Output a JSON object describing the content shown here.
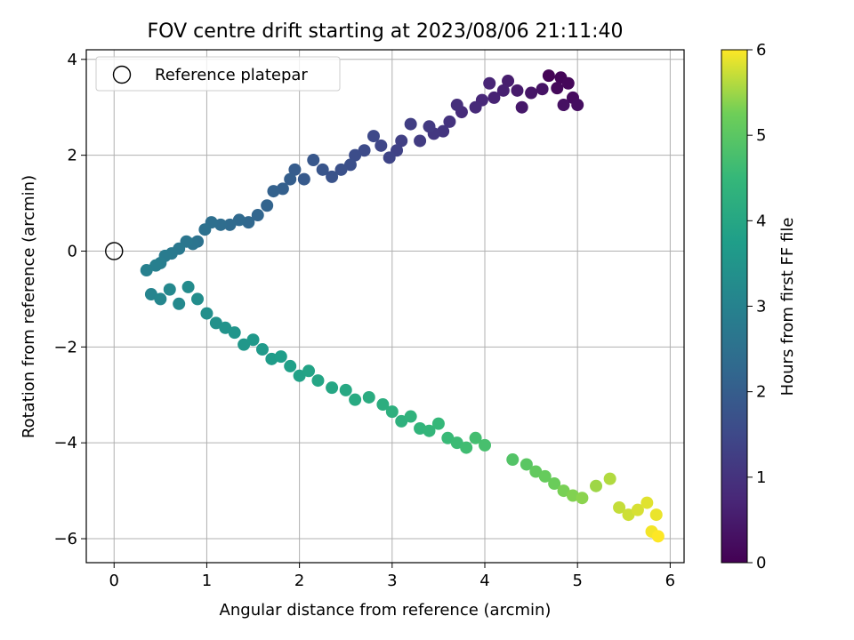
{
  "chart_data": {
    "type": "scatter",
    "title": "FOV centre drift starting at 2023/08/06 21:11:40",
    "xlabel": "Angular distance from reference (arcmin)",
    "ylabel": "Rotation from reference (arcmin)",
    "xlim": [
      -0.3,
      6.15
    ],
    "ylim": [
      -6.5,
      4.2
    ],
    "x_ticks": [
      0,
      1,
      2,
      3,
      4,
      5,
      6
    ],
    "x_tick_labels": [
      "0",
      "1",
      "2",
      "3",
      "4",
      "5",
      "6"
    ],
    "y_ticks": [
      -6,
      -4,
      -2,
      0,
      2,
      4
    ],
    "y_tick_labels": [
      "−6",
      "−4",
      "−2",
      "0",
      "2",
      "4"
    ],
    "grid": true,
    "legend": {
      "position": "top-left",
      "entries": [
        "Reference platepar"
      ]
    },
    "reference_point": {
      "x": 0,
      "y": 0,
      "label": "Reference platepar"
    },
    "colorbar": {
      "label": "Hours from first FF file",
      "colormap": "viridis",
      "range": [
        0,
        6
      ],
      "ticks": [
        0,
        1,
        2,
        3,
        4,
        5,
        6
      ],
      "tick_labels": [
        "0",
        "1",
        "2",
        "3",
        "4",
        "5",
        "6"
      ]
    },
    "series": [
      {
        "points": [
          [
            4.69,
            3.66
          ],
          [
            4.82,
            3.62
          ],
          [
            4.9,
            3.5
          ],
          [
            4.78,
            3.4
          ],
          [
            4.95,
            3.2
          ],
          [
            5.0,
            3.05
          ],
          [
            4.85,
            3.05
          ],
          [
            4.62,
            3.38
          ],
          [
            4.5,
            3.3
          ],
          [
            4.4,
            3.0
          ],
          [
            4.35,
            3.35
          ],
          [
            4.25,
            3.55
          ],
          [
            4.2,
            3.35
          ],
          [
            4.1,
            3.2
          ],
          [
            4.05,
            3.5
          ],
          [
            3.97,
            3.15
          ],
          [
            3.9,
            3.0
          ],
          [
            3.75,
            2.9
          ],
          [
            3.7,
            3.05
          ],
          [
            3.62,
            2.7
          ],
          [
            3.55,
            2.5
          ],
          [
            3.45,
            2.45
          ],
          [
            3.4,
            2.6
          ],
          [
            3.3,
            2.3
          ],
          [
            3.2,
            2.65
          ],
          [
            3.1,
            2.3
          ],
          [
            3.05,
            2.1
          ],
          [
            2.97,
            1.95
          ],
          [
            2.88,
            2.2
          ],
          [
            2.8,
            2.4
          ],
          [
            2.7,
            2.1
          ],
          [
            2.6,
            2.0
          ],
          [
            2.55,
            1.8
          ],
          [
            2.45,
            1.7
          ],
          [
            2.35,
            1.55
          ],
          [
            2.25,
            1.7
          ],
          [
            2.15,
            1.9
          ],
          [
            2.05,
            1.5
          ],
          [
            1.95,
            1.7
          ],
          [
            1.9,
            1.5
          ],
          [
            1.82,
            1.3
          ],
          [
            1.72,
            1.25
          ],
          [
            1.65,
            0.95
          ],
          [
            1.55,
            0.75
          ],
          [
            1.45,
            0.6
          ],
          [
            1.35,
            0.65
          ],
          [
            1.25,
            0.55
          ],
          [
            1.15,
            0.55
          ],
          [
            1.05,
            0.6
          ],
          [
            0.98,
            0.45
          ],
          [
            0.9,
            0.2
          ],
          [
            0.85,
            0.15
          ],
          [
            0.78,
            0.2
          ],
          [
            0.7,
            0.05
          ],
          [
            0.62,
            -0.05
          ],
          [
            0.55,
            -0.1
          ],
          [
            0.5,
            -0.25
          ],
          [
            0.45,
            -0.3
          ],
          [
            0.35,
            -0.4
          ]
        ],
        "hours": [
          0.05,
          0.08,
          0.12,
          0.15,
          0.2,
          0.25,
          0.3,
          0.35,
          0.4,
          0.45,
          0.5,
          0.55,
          0.6,
          0.65,
          0.7,
          0.75,
          0.8,
          0.85,
          0.9,
          1.0,
          1.05,
          1.1,
          1.15,
          1.2,
          1.25,
          1.3,
          1.35,
          1.4,
          1.45,
          1.5,
          1.55,
          1.6,
          1.65,
          1.7,
          1.75,
          1.8,
          1.85,
          1.9,
          1.95,
          2.0,
          2.05,
          2.1,
          2.15,
          2.2,
          2.25,
          2.3,
          2.35,
          2.4,
          2.45,
          2.5,
          2.55,
          2.6,
          2.65,
          2.7,
          2.75,
          2.8,
          2.85,
          2.9,
          2.95
        ]
      },
      {
        "points": [
          [
            0.4,
            -0.9
          ],
          [
            0.5,
            -1.0
          ],
          [
            0.6,
            -0.8
          ],
          [
            0.7,
            -1.1
          ],
          [
            0.8,
            -0.75
          ],
          [
            0.9,
            -1.0
          ],
          [
            1.0,
            -1.3
          ],
          [
            1.1,
            -1.5
          ],
          [
            1.2,
            -1.6
          ],
          [
            1.3,
            -1.7
          ],
          [
            1.4,
            -1.95
          ],
          [
            1.5,
            -1.85
          ],
          [
            1.6,
            -2.05
          ],
          [
            1.7,
            -2.25
          ],
          [
            1.8,
            -2.2
          ],
          [
            1.9,
            -2.4
          ],
          [
            2.0,
            -2.6
          ],
          [
            2.1,
            -2.5
          ],
          [
            2.2,
            -2.7
          ],
          [
            2.35,
            -2.85
          ],
          [
            2.5,
            -2.9
          ],
          [
            2.6,
            -3.1
          ],
          [
            2.75,
            -3.05
          ],
          [
            2.9,
            -3.2
          ],
          [
            3.0,
            -3.35
          ],
          [
            3.1,
            -3.55
          ],
          [
            3.2,
            -3.45
          ],
          [
            3.3,
            -3.7
          ],
          [
            3.4,
            -3.75
          ],
          [
            3.5,
            -3.6
          ],
          [
            3.6,
            -3.9
          ],
          [
            3.7,
            -4.0
          ],
          [
            3.8,
            -4.1
          ],
          [
            3.9,
            -3.9
          ],
          [
            4.0,
            -4.05
          ],
          [
            4.3,
            -4.35
          ],
          [
            4.45,
            -4.45
          ],
          [
            4.55,
            -4.6
          ],
          [
            4.65,
            -4.7
          ],
          [
            4.75,
            -4.85
          ],
          [
            4.85,
            -5.0
          ],
          [
            4.95,
            -5.1
          ],
          [
            5.05,
            -5.15
          ],
          [
            5.2,
            -4.9
          ],
          [
            5.35,
            -4.75
          ],
          [
            5.45,
            -5.35
          ],
          [
            5.55,
            -5.5
          ],
          [
            5.65,
            -5.4
          ],
          [
            5.75,
            -5.25
          ],
          [
            5.85,
            -5.5
          ],
          [
            5.8,
            -5.85
          ],
          [
            5.87,
            -5.95
          ]
        ],
        "hours": [
          3.05,
          3.1,
          3.15,
          3.2,
          3.25,
          3.3,
          3.35,
          3.4,
          3.45,
          3.5,
          3.55,
          3.6,
          3.65,
          3.7,
          3.75,
          3.8,
          3.85,
          3.9,
          3.95,
          4.0,
          4.05,
          4.1,
          4.15,
          4.2,
          4.25,
          4.3,
          4.35,
          4.4,
          4.45,
          4.5,
          4.55,
          4.6,
          4.65,
          4.7,
          4.75,
          4.9,
          5.0,
          5.1,
          5.15,
          5.2,
          5.3,
          5.35,
          5.4,
          5.5,
          5.6,
          5.7,
          5.75,
          5.8,
          5.85,
          5.9,
          5.95,
          6.0
        ]
      }
    ]
  }
}
